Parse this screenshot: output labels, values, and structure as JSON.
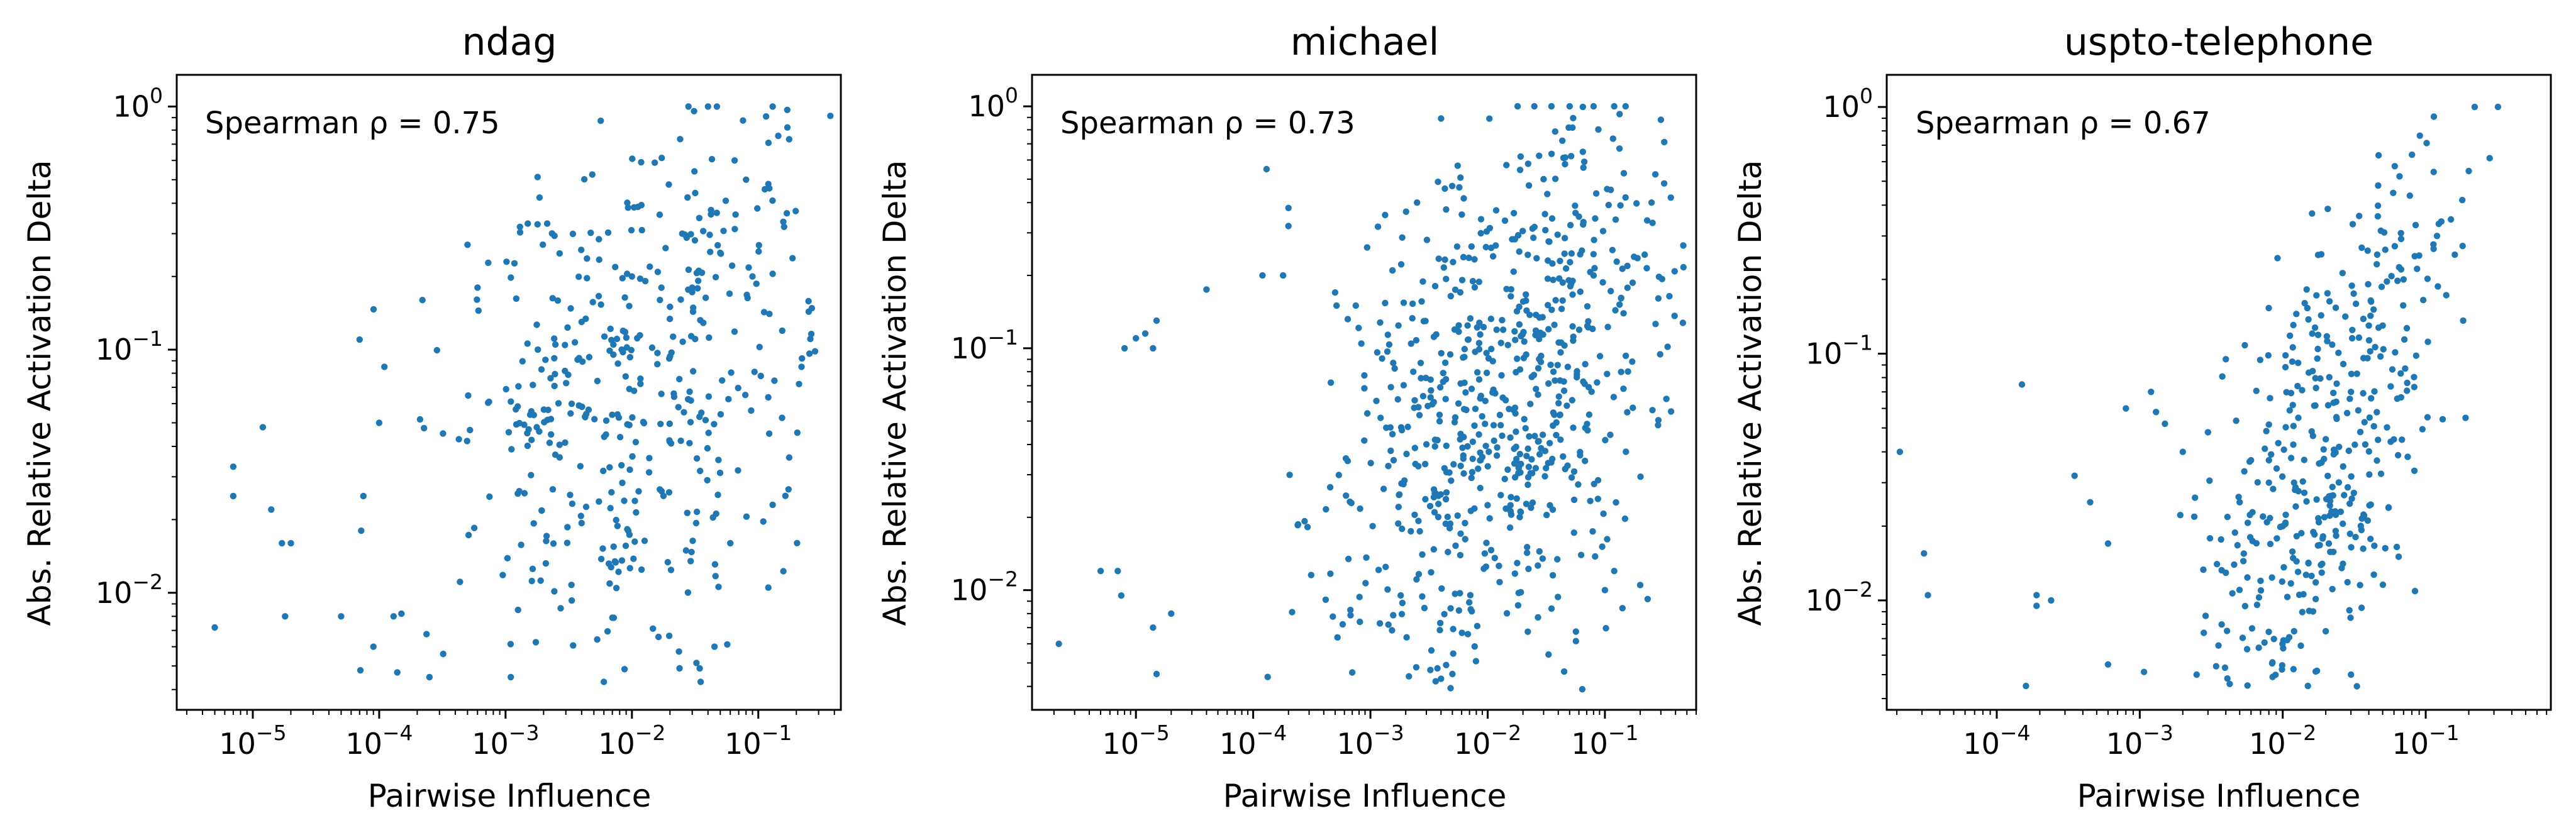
{
  "chart_data": [
    {
      "type": "scatter",
      "title": "ndag",
      "xlabel": "Pairwise Influence",
      "ylabel": "Abs. Relative Activation Delta",
      "xscale": "log",
      "yscale": "log",
      "xlim": [
        2.5e-06,
        0.45
      ],
      "ylim": [
        0.0033,
        1.35
      ],
      "xticks": [
        -5,
        -4,
        -3,
        -2,
        -1
      ],
      "yticks": [
        -2,
        -1,
        0
      ],
      "annotation": "Spearman ρ = 0.75",
      "marker_color": "#1f77b4",
      "grid": false,
      "anchors": [
        [
          5e-06,
          0.0072
        ],
        [
          7e-06,
          0.033
        ],
        [
          7e-06,
          0.025
        ],
        [
          1.2e-05,
          0.048
        ],
        [
          1.4e-05,
          0.022
        ],
        [
          1.7e-05,
          0.016
        ],
        [
          2e-05,
          0.016
        ],
        [
          1.8e-05,
          0.008
        ],
        [
          5e-05,
          0.008
        ],
        [
          7e-05,
          0.11
        ],
        [
          7.2e-05,
          0.018
        ],
        [
          7.5e-05,
          0.025
        ],
        [
          7.1e-05,
          0.0048
        ],
        [
          9e-05,
          0.006
        ],
        [
          0.0001,
          0.05
        ],
        [
          0.00011,
          0.085
        ],
        [
          0.00013,
          0.008
        ],
        [
          0.00015,
          0.0082
        ],
        [
          0.00022,
          0.16
        ],
        [
          0.00025,
          0.0045
        ],
        [
          0.0005,
          0.27
        ],
        [
          0.0006,
          0.18
        ],
        [
          0.0013,
          0.32
        ],
        [
          0.0015,
          0.33
        ],
        [
          0.0011,
          0.0045
        ],
        [
          0.0018,
          0.1
        ],
        [
          0.004,
          0.13
        ],
        [
          0.006,
          0.0043
        ],
        [
          0.01,
          0.2
        ],
        [
          0.012,
          0.31
        ],
        [
          0.028,
          1.0
        ],
        [
          0.04,
          1.0
        ],
        [
          0.047,
          1.0
        ],
        [
          0.13,
          1.0
        ],
        [
          0.17,
          0.82
        ],
        [
          0.065,
          0.6
        ],
        [
          0.08,
          0.5
        ],
        [
          0.12,
          0.48
        ],
        [
          0.16,
          0.32
        ],
        [
          0.22,
          0.085
        ],
        [
          0.13,
          0.023
        ],
        [
          0.12,
          0.0105
        ],
        [
          0.06,
          0.016
        ],
        [
          0.045,
          0.006
        ],
        [
          0.035,
          0.0043
        ],
        [
          0.025,
          0.3
        ],
        [
          0.05,
          0.25
        ],
        [
          0.09,
          0.2
        ],
        [
          0.03,
          0.18
        ],
        [
          0.02,
          0.15
        ]
      ],
      "cluster_center": [
        -1.9,
        -1.15
      ],
      "cluster_spread": [
        0.75,
        0.55
      ]
    },
    {
      "type": "scatter",
      "title": "michael",
      "xlabel": "Pairwise Influence",
      "ylabel": "Abs. Relative Activation Delta",
      "xscale": "log",
      "yscale": "log",
      "xlim": [
        1.3e-06,
        0.6
      ],
      "ylim": [
        0.0032,
        1.35
      ],
      "xticks": [
        -5,
        -4,
        -3,
        -2,
        -1
      ],
      "yticks": [
        -2,
        -1,
        0
      ],
      "annotation": "Spearman ρ = 0.73",
      "marker_color": "#1f77b4",
      "grid": false,
      "anchors": [
        [
          2.2e-06,
          0.006
        ],
        [
          8e-06,
          0.1
        ],
        [
          1e-05,
          0.11
        ],
        [
          1.2e-05,
          0.115
        ],
        [
          1.4e-05,
          0.1
        ],
        [
          1.5e-05,
          0.13
        ],
        [
          5e-06,
          0.012
        ],
        [
          7e-06,
          0.012
        ],
        [
          7.5e-06,
          0.0095
        ],
        [
          1.5e-05,
          0.0045
        ],
        [
          1.4e-05,
          0.007
        ],
        [
          2e-05,
          0.008
        ],
        [
          4e-05,
          0.175
        ],
        [
          0.00012,
          0.2
        ],
        [
          0.00013,
          0.55
        ],
        [
          0.00018,
          0.2
        ],
        [
          0.0002,
          0.38
        ],
        [
          0.0002,
          0.32
        ],
        [
          0.0005,
          0.17
        ],
        [
          0.00075,
          0.15
        ],
        [
          0.0025,
          0.4
        ],
        [
          0.004,
          0.0043
        ],
        [
          0.0036,
          0.0042
        ],
        [
          0.005,
          0.0045
        ],
        [
          0.018,
          1.0
        ],
        [
          0.025,
          1.0
        ],
        [
          0.035,
          1.0
        ],
        [
          0.05,
          1.0
        ],
        [
          0.08,
          1.0
        ],
        [
          0.12,
          1.0
        ],
        [
          0.15,
          1.0
        ],
        [
          0.3,
          0.88
        ],
        [
          0.32,
          0.48
        ],
        [
          0.25,
          0.4
        ],
        [
          0.1,
          0.01
        ],
        [
          0.12,
          0.012
        ],
        [
          0.2,
          0.0105
        ],
        [
          0.08,
          0.2
        ],
        [
          0.06,
          0.35
        ],
        [
          0.03,
          0.5
        ]
      ],
      "cluster_center": [
        -1.85,
        -1.2
      ],
      "cluster_spread": [
        0.75,
        0.55
      ]
    },
    {
      "type": "scatter",
      "title": "uspto-telephone",
      "xlabel": "Pairwise Influence",
      "ylabel": "Abs. Relative Activation Delta",
      "xscale": "log",
      "yscale": "log",
      "xlim": [
        1.7e-05,
        0.75
      ],
      "ylim": [
        0.0036,
        1.35
      ],
      "xticks": [
        -4,
        -3,
        -2,
        -1
      ],
      "yticks": [
        -2,
        -1,
        0
      ],
      "annotation": "Spearman ρ = 0.67",
      "marker_color": "#1f77b4",
      "grid": false,
      "anchors": [
        [
          2.1e-05,
          0.04
        ],
        [
          3.1e-05,
          0.0155
        ],
        [
          3.3e-05,
          0.0105
        ],
        [
          0.00015,
          0.075
        ],
        [
          0.00016,
          0.0045
        ],
        [
          0.00019,
          0.0105
        ],
        [
          0.00019,
          0.0095
        ],
        [
          0.00024,
          0.01
        ],
        [
          0.00035,
          0.032
        ],
        [
          0.00045,
          0.025
        ],
        [
          0.0006,
          0.017
        ],
        [
          0.0006,
          0.0055
        ],
        [
          0.0008,
          0.06
        ],
        [
          0.0012,
          0.07
        ],
        [
          0.0013,
          0.058
        ],
        [
          0.0015,
          0.052
        ],
        [
          0.002,
          0.04
        ],
        [
          0.0025,
          0.005
        ],
        [
          0.004,
          0.095
        ],
        [
          0.006,
          0.037
        ],
        [
          0.008,
          0.037
        ],
        [
          0.007,
          0.012
        ],
        [
          0.01,
          0.02
        ],
        [
          0.012,
          0.03
        ],
        [
          0.02,
          0.045
        ],
        [
          0.03,
          0.07
        ],
        [
          0.04,
          0.13
        ],
        [
          0.05,
          0.13
        ],
        [
          0.07,
          0.2
        ],
        [
          0.09,
          0.25
        ],
        [
          0.12,
          0.3
        ],
        [
          0.15,
          0.35
        ],
        [
          0.2,
          0.55
        ],
        [
          0.22,
          1.0
        ],
        [
          0.28,
          0.62
        ],
        [
          0.32,
          1.0
        ],
        [
          0.03,
          0.005
        ],
        [
          0.015,
          0.0045
        ],
        [
          0.012,
          0.0075
        ],
        [
          0.02,
          0.0075
        ],
        [
          0.008,
          0.03
        ],
        [
          0.005,
          0.025
        ]
      ],
      "cluster_center": [
        -1.75,
        -1.45
      ],
      "cluster_spread": [
        0.45,
        0.5
      ]
    }
  ]
}
